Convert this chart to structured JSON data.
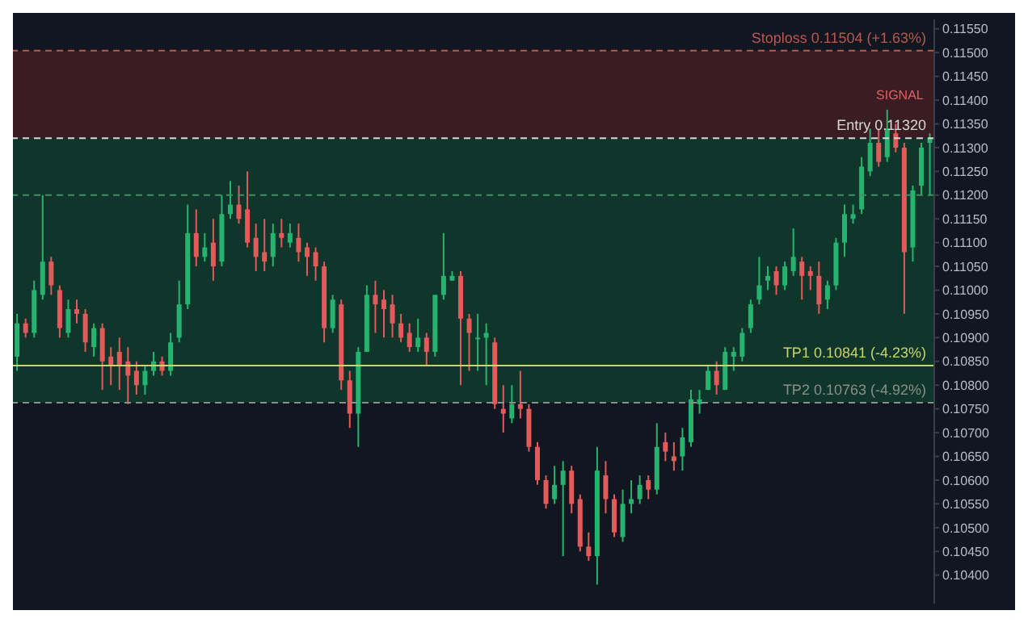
{
  "chart_data": {
    "type": "candlestick",
    "categories": [
      null,
      null,
      null,
      null,
      null,
      null,
      null,
      null,
      null,
      null,
      null,
      null,
      null,
      null,
      null,
      null,
      null,
      null,
      null,
      null,
      null,
      null,
      null,
      null,
      null,
      null,
      null,
      null,
      null,
      null,
      null,
      null,
      null,
      null,
      null,
      null,
      null,
      null,
      null,
      null,
      null,
      null,
      null,
      null,
      null,
      null,
      null,
      null,
      null,
      null,
      null,
      null,
      null,
      null,
      null,
      null,
      null,
      null,
      null,
      null,
      null,
      null,
      null,
      null,
      null,
      null,
      null,
      null,
      null,
      null,
      null,
      null,
      null,
      null,
      null,
      null,
      null,
      null,
      null,
      null,
      null,
      null,
      null,
      null,
      null,
      null,
      null,
      null,
      null,
      null,
      null,
      null,
      null,
      null,
      null,
      null,
      null,
      null,
      null,
      null,
      null,
      null,
      null,
      null,
      null,
      null,
      null,
      null
    ],
    "ohlc": [
      [
        0.1086,
        0.1095,
        0.1083,
        0.1093
      ],
      [
        0.1093,
        0.1094,
        0.109,
        0.1091
      ],
      [
        0.1091,
        0.1102,
        0.109,
        0.11
      ],
      [
        0.1099,
        0.112,
        0.1098,
        0.1106
      ],
      [
        0.1106,
        0.1107,
        0.1099,
        0.1101
      ],
      [
        0.11,
        0.1101,
        0.109,
        0.1092
      ],
      [
        0.1091,
        0.1098,
        0.109,
        0.1096
      ],
      [
        0.1096,
        0.1098,
        0.1093,
        0.1095
      ],
      [
        0.1095,
        0.1096,
        0.1087,
        0.1089
      ],
      [
        0.1088,
        0.1093,
        0.1086,
        0.1092
      ],
      [
        0.1092,
        0.1093,
        0.1079,
        0.1085
      ],
      [
        0.1086,
        0.1088,
        0.108,
        0.1084
      ],
      [
        0.1087,
        0.109,
        0.1079,
        0.1084
      ],
      [
        0.1085,
        0.1088,
        0.1076,
        0.1082
      ],
      [
        0.1083,
        0.1085,
        0.1078,
        0.108
      ],
      [
        0.108,
        0.1084,
        0.1078,
        0.1083
      ],
      [
        0.1083,
        0.1087,
        0.1082,
        0.1085
      ],
      [
        0.1085,
        0.1086,
        0.1082,
        0.1083
      ],
      [
        0.1083,
        0.1091,
        0.1082,
        0.1089
      ],
      [
        0.109,
        0.1102,
        0.1089,
        0.1097
      ],
      [
        0.1097,
        0.1118,
        0.1096,
        0.1112
      ],
      [
        0.1112,
        0.1117,
        0.1105,
        0.1107
      ],
      [
        0.1107,
        0.1112,
        0.1106,
        0.1109
      ],
      [
        0.111,
        0.1115,
        0.1102,
        0.1105
      ],
      [
        0.1106,
        0.112,
        0.1105,
        0.1116
      ],
      [
        0.1116,
        0.1123,
        0.1115,
        0.1118
      ],
      [
        0.1118,
        0.1122,
        0.1114,
        0.1115
      ],
      [
        0.1117,
        0.1125,
        0.1109,
        0.111
      ],
      [
        0.1111,
        0.1114,
        0.1104,
        0.1107
      ],
      [
        0.1108,
        0.1115,
        0.1104,
        0.1106
      ],
      [
        0.1107,
        0.1114,
        0.1105,
        0.1112
      ],
      [
        0.1112,
        0.1115,
        0.1109,
        0.1111
      ],
      [
        0.111,
        0.1114,
        0.1109,
        0.1112
      ],
      [
        0.1111,
        0.1114,
        0.1106,
        0.1108
      ],
      [
        0.1109,
        0.111,
        0.1103,
        0.1107
      ],
      [
        0.1108,
        0.1109,
        0.1102,
        0.1105
      ],
      [
        0.1105,
        0.1106,
        0.1089,
        0.1092
      ],
      [
        0.1092,
        0.1099,
        0.1091,
        0.1098
      ],
      [
        0.1097,
        0.1098,
        0.1079,
        0.1081
      ],
      [
        0.1081,
        0.1083,
        0.1071,
        0.1074
      ],
      [
        0.1074,
        0.1088,
        0.1067,
        0.1087
      ],
      [
        0.1087,
        0.1101,
        0.1087,
        0.1099
      ],
      [
        0.1099,
        0.1102,
        0.1091,
        0.1097
      ],
      [
        0.1098,
        0.11,
        0.109,
        0.1096
      ],
      [
        0.1097,
        0.1099,
        0.109,
        0.1093
      ],
      [
        0.1093,
        0.1095,
        0.1089,
        0.109
      ],
      [
        0.1091,
        0.1093,
        0.1087,
        0.1088
      ],
      [
        0.1088,
        0.1094,
        0.1087,
        0.109
      ],
      [
        0.109,
        0.1091,
        0.1084,
        0.1087
      ],
      [
        0.1087,
        0.1099,
        0.1086,
        0.1099
      ],
      [
        0.1099,
        0.1112,
        0.1098,
        0.1103
      ],
      [
        0.1102,
        0.1104,
        0.1102,
        0.1103
      ],
      [
        0.1103,
        0.1104,
        0.108,
        0.1094
      ],
      [
        0.1094,
        0.1095,
        0.1083,
        0.1091
      ],
      [
        0.109,
        0.1095,
        0.1083,
        0.109
      ],
      [
        0.109,
        0.1093,
        0.108,
        0.1091
      ],
      [
        0.1089,
        0.109,
        0.1075,
        0.1076
      ],
      [
        0.1075,
        0.108,
        0.107,
        0.1074
      ],
      [
        0.1073,
        0.108,
        0.1072,
        0.1076
      ],
      [
        0.1076,
        0.1083,
        0.1073,
        0.1075
      ],
      [
        0.1075,
        0.1076,
        0.1066,
        0.1067
      ],
      [
        0.1067,
        0.1068,
        0.1059,
        0.106
      ],
      [
        0.106,
        0.1061,
        0.1054,
        0.1055
      ],
      [
        0.1056,
        0.1063,
        0.1055,
        0.1059
      ],
      [
        0.1059,
        0.1064,
        0.1044,
        0.1062
      ],
      [
        0.1062,
        0.1063,
        0.1053,
        0.1055
      ],
      [
        0.1056,
        0.1057,
        0.1045,
        0.1046
      ],
      [
        0.1046,
        0.1049,
        0.1043,
        0.1044
      ],
      [
        0.1044,
        0.1067,
        0.1038,
        0.1062
      ],
      [
        0.1061,
        0.1064,
        0.1053,
        0.1056
      ],
      [
        0.1056,
        0.1057,
        0.1048,
        0.1049
      ],
      [
        0.1048,
        0.1058,
        0.1047,
        0.1055
      ],
      [
        0.1055,
        0.106,
        0.1053,
        0.1056
      ],
      [
        0.1056,
        0.1061,
        0.1055,
        0.1059
      ],
      [
        0.106,
        0.1061,
        0.1056,
        0.1058
      ],
      [
        0.1058,
        0.1072,
        0.1057,
        0.1067
      ],
      [
        0.1068,
        0.107,
        0.1064,
        0.1066
      ],
      [
        0.1065,
        0.1068,
        0.1062,
        0.1064
      ],
      [
        0.1065,
        0.1071,
        0.1062,
        0.1069
      ],
      [
        0.1068,
        0.1079,
        0.1067,
        0.1077
      ],
      [
        0.1076,
        0.1079,
        0.1074,
        0.1077
      ],
      [
        0.1079,
        0.1084,
        0.1079,
        0.1083
      ],
      [
        0.1083,
        0.1085,
        0.1078,
        0.108
      ],
      [
        0.1079,
        0.1088,
        0.1079,
        0.1087
      ],
      [
        0.1086,
        0.1088,
        0.1083,
        0.1087
      ],
      [
        0.1086,
        0.1092,
        0.1085,
        0.1091
      ],
      [
        0.1092,
        0.1098,
        0.1091,
        0.1097
      ],
      [
        0.1098,
        0.1107,
        0.1097,
        0.1101
      ],
      [
        0.1102,
        0.1105,
        0.11,
        0.1103
      ],
      [
        0.1104,
        0.1105,
        0.1099,
        0.1101
      ],
      [
        0.1101,
        0.1106,
        0.11,
        0.1105
      ],
      [
        0.1104,
        0.1113,
        0.1103,
        0.1107
      ],
      [
        0.1106,
        0.1107,
        0.1098,
        0.1103
      ],
      [
        0.1104,
        0.1105,
        0.11,
        0.1103
      ],
      [
        0.1103,
        0.1106,
        0.1095,
        0.1097
      ],
      [
        0.1098,
        0.1102,
        0.1096,
        0.1101
      ],
      [
        0.1101,
        0.1111,
        0.11,
        0.111
      ],
      [
        0.111,
        0.1118,
        0.1107,
        0.1116
      ],
      [
        0.1115,
        0.1118,
        0.1114,
        0.1116
      ],
      [
        0.1117,
        0.1128,
        0.1116,
        0.1126
      ],
      [
        0.1125,
        0.1134,
        0.1124,
        0.1131
      ],
      [
        0.1131,
        0.1134,
        0.1126,
        0.1127
      ],
      [
        0.1128,
        0.1138,
        0.1127,
        0.1134
      ],
      [
        0.1133,
        0.1135,
        0.1129,
        0.113
      ],
      [
        0.113,
        0.1131,
        0.1095,
        0.1108
      ],
      [
        0.1109,
        0.1122,
        0.1106,
        0.1121
      ],
      [
        0.1122,
        0.1131,
        0.112,
        0.113
      ],
      [
        0.1131,
        0.1133,
        0.112,
        0.1132
      ]
    ],
    "colors": [
      "#26b36f",
      "#e25a5a",
      "#26b36f",
      "#26b36f",
      "#e25a5a",
      "#e25a5a",
      "#26b36f",
      "#e25a5a",
      "#e25a5a",
      "#26b36f",
      "#e25a5a",
      "#e25a5a",
      "#e25a5a",
      "#e25a5a",
      "#e25a5a",
      "#26b36f",
      "#26b36f",
      "#e25a5a",
      "#26b36f",
      "#26b36f",
      "#26b36f",
      "#e25a5a",
      "#26b36f",
      "#e25a5a",
      "#26b36f",
      "#26b36f",
      "#e25a5a",
      "#e25a5a",
      "#e25a5a",
      "#e25a5a",
      "#26b36f",
      "#e25a5a",
      "#26b36f",
      "#e25a5a",
      "#e25a5a",
      "#e25a5a",
      "#e25a5a",
      "#26b36f",
      "#e25a5a",
      "#e25a5a",
      "#26b36f",
      "#26b36f",
      "#e25a5a",
      "#e25a5a",
      "#e25a5a",
      "#e25a5a",
      "#e25a5a",
      "#26b36f",
      "#e25a5a",
      "#26b36f",
      "#26b36f",
      "#26b36f",
      "#e25a5a",
      "#e25a5a",
      "#26b36f",
      "#26b36f",
      "#e25a5a",
      "#e25a5a",
      "#26b36f",
      "#e25a5a",
      "#e25a5a",
      "#e25a5a",
      "#e25a5a",
      "#26b36f",
      "#26b36f",
      "#e25a5a",
      "#e25a5a",
      "#e25a5a",
      "#26b36f",
      "#e25a5a",
      "#e25a5a",
      "#26b36f",
      "#26b36f",
      "#26b36f",
      "#e25a5a",
      "#26b36f",
      "#e25a5a",
      "#e25a5a",
      "#26b36f",
      "#26b36f",
      "#26b36f",
      "#26b36f",
      "#e25a5a",
      "#26b36f",
      "#26b36f",
      "#26b36f",
      "#26b36f",
      "#26b36f",
      "#26b36f",
      "#e25a5a",
      "#26b36f",
      "#26b36f",
      "#e25a5a",
      "#e25a5a",
      "#e25a5a",
      "#26b36f",
      "#26b36f",
      "#26b36f",
      "#26b36f",
      "#26b36f",
      "#26b36f",
      "#e25a5a",
      "#26b36f",
      "#e25a5a",
      "#e25a5a",
      "#26b36f",
      "#26b36f",
      "#26b36f"
    ],
    "ylim": [
      0.1034,
      0.1157
    ],
    "yticks": [
      {
        "value": 0.104,
        "label": "0.10400"
      },
      {
        "value": 0.1045,
        "label": "0.10450"
      },
      {
        "value": 0.105,
        "label": "0.10500"
      },
      {
        "value": 0.1055,
        "label": "0.10550"
      },
      {
        "value": 0.106,
        "label": "0.10600"
      },
      {
        "value": 0.1065,
        "label": "0.10650"
      },
      {
        "value": 0.107,
        "label": "0.10700"
      },
      {
        "value": 0.1075,
        "label": "0.10750"
      },
      {
        "value": 0.108,
        "label": "0.10800"
      },
      {
        "value": 0.1085,
        "label": "0.10850"
      },
      {
        "value": 0.109,
        "label": "0.10900"
      },
      {
        "value": 0.1095,
        "label": "0.10950"
      },
      {
        "value": 0.11,
        "label": "0.11000"
      },
      {
        "value": 0.1105,
        "label": "0.11050"
      },
      {
        "value": 0.111,
        "label": "0.11100"
      },
      {
        "value": 0.1115,
        "label": "0.11150"
      },
      {
        "value": 0.112,
        "label": "0.11200"
      },
      {
        "value": 0.1125,
        "label": "0.11250"
      },
      {
        "value": 0.113,
        "label": "0.11300"
      },
      {
        "value": 0.1135,
        "label": "0.11350"
      },
      {
        "value": 0.114,
        "label": "0.11400"
      },
      {
        "value": 0.1145,
        "label": "0.11450"
      },
      {
        "value": 0.115,
        "label": "0.11500"
      },
      {
        "value": 0.1155,
        "label": "0.11550"
      }
    ],
    "tick_labels": "y",
    "ref_lines": [
      {
        "axis": "y",
        "value": 0.11504,
        "label": "Stoploss 0.11504 (+1.63%)",
        "color": "#b8584f",
        "line_style": "dashed"
      },
      {
        "axis": "y",
        "value": 0.1132,
        "label": "Entry 0.11320",
        "color": "#d8d8d8",
        "line_style": "dashed"
      },
      {
        "axis": "y",
        "value": 0.112,
        "color": "#3f8f63",
        "line_style": "dashed"
      },
      {
        "axis": "y",
        "value": 0.10841,
        "label": "TP1 0.10841 (-4.23%)",
        "color": "#c9d46a",
        "line_style": "solid"
      },
      {
        "axis": "y",
        "value": 0.10763,
        "label": "TP2 0.10763 (-4.92%)",
        "color": "#8a8f8c",
        "line_style": "dashed"
      }
    ],
    "bands": [
      {
        "axis": "y",
        "from": 0.1132,
        "to": 0.11504,
        "color": "#3a1d24"
      },
      {
        "axis": "y",
        "from": 0.10763,
        "to": 0.1132,
        "color": "#10352a"
      }
    ],
    "annotations": [
      "SIGNAL"
    ]
  }
}
